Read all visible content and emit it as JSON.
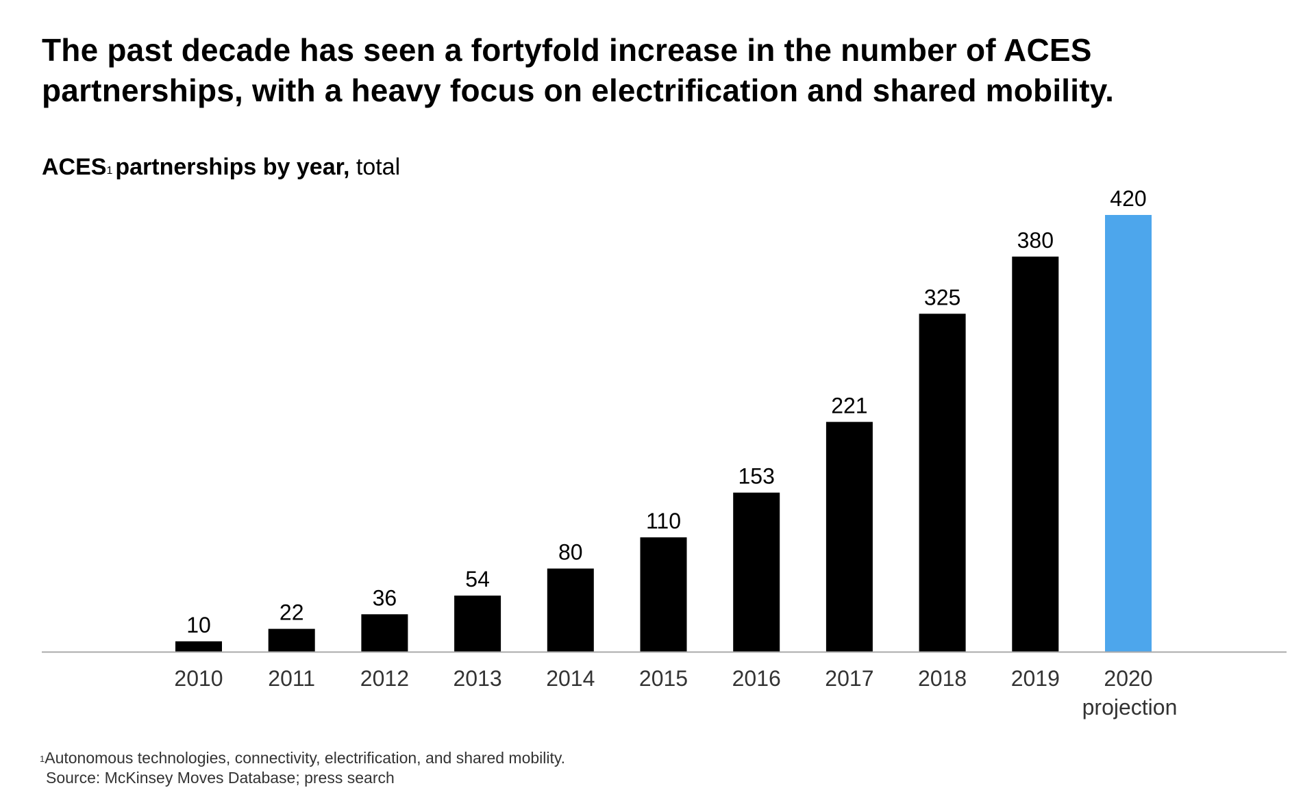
{
  "headline": "The past decade has seen a fortyfold increase in the number of ACES partnerships, with a heavy focus on electrification and shared mobility.",
  "subtitle": {
    "main": "ACES",
    "footnote_marker": "1",
    "rest": "partnerships by year,",
    "unit": "total"
  },
  "footnote": {
    "marker": "1",
    "text": "Autonomous technologies, connectivity, electrification, and shared mobility.",
    "source": "Source: McKinsey Moves Database; press search"
  },
  "colors": {
    "bar": "#000000",
    "projection_bar": "#4da6ec",
    "axis": "#aaaaaa",
    "tick_label": "#333333",
    "value_label": "#000000"
  },
  "chart_data": {
    "type": "bar",
    "categories": [
      "2010",
      "2011",
      "2012",
      "2013",
      "2014",
      "2015",
      "2016",
      "2017",
      "2018",
      "2019",
      "2020"
    ],
    "category_sublabels": [
      "",
      "",
      "",
      "",
      "",
      "",
      "",
      "",
      "",
      "",
      "projection"
    ],
    "values": [
      10,
      22,
      36,
      54,
      80,
      110,
      153,
      221,
      325,
      380,
      420
    ],
    "highlight_index": 10,
    "ylim": [
      0,
      420
    ],
    "grid": false,
    "legend": "none"
  }
}
